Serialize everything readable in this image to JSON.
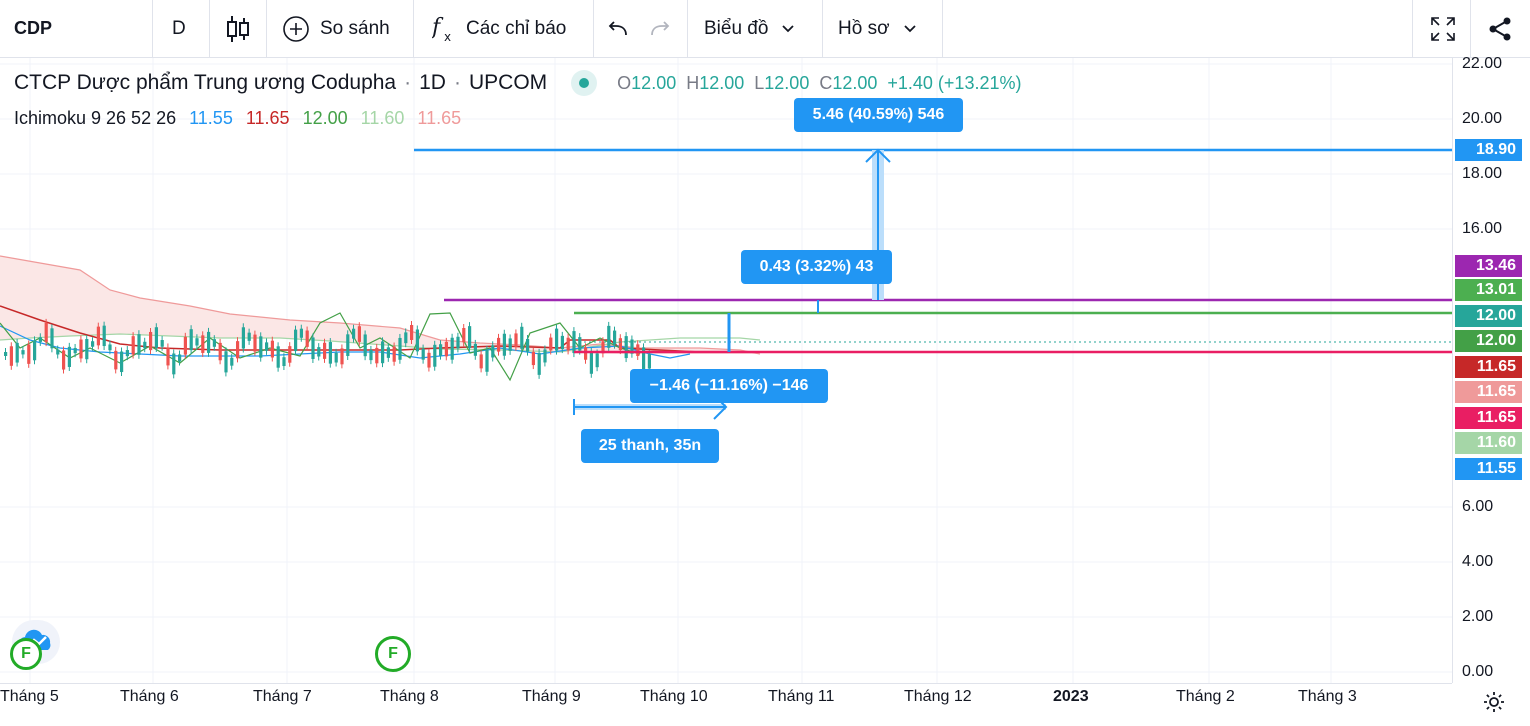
{
  "toolbar": {
    "symbol": "CDP",
    "interval": "D",
    "compare_label": "So sánh",
    "indicators_label": "Các chỉ báo",
    "chart_type_label": "Biểu đồ",
    "profile_label": "Hồ sơ"
  },
  "legend": {
    "title": "CTCP Dược phẩm Trung ương Codupha",
    "dot1": "·",
    "interval": "1D",
    "dot2": "·",
    "exchange": "UPCOM",
    "o_label": "O",
    "o_val": "12.00",
    "h_label": "H",
    "h_val": "12.00",
    "l_label": "L",
    "l_val": "12.00",
    "c_label": "C",
    "c_val": "12.00",
    "change": "+1.40 (+13.21%)",
    "ichimoku_label": "Ichimoku 9 26 52 26",
    "ichi_values": [
      "11.55",
      "11.65",
      "12.00",
      "11.60",
      "11.65"
    ]
  },
  "tooltips": {
    "top": "5.46 (40.59%) 546",
    "mid": "0.43 (3.32%) 43",
    "neg": "−1.46 (−11.16%) −146",
    "bars": "25 thanh, 35n"
  },
  "price_ticks": [
    "22.00",
    "20.00",
    "18.00",
    "16.00",
    "6.00",
    "4.00",
    "2.00",
    "0.00"
  ],
  "price_labels": [
    {
      "text": "18.90",
      "color": "#2196f3"
    },
    {
      "text": "13.46",
      "color": "#9c27b0"
    },
    {
      "text": "13.01",
      "color": "#4caf50"
    },
    {
      "text": "12.00",
      "color": "#26a69a"
    },
    {
      "text": "12.00",
      "color": "#43a047"
    },
    {
      "text": "11.65",
      "color": "#c62828"
    },
    {
      "text": "11.65",
      "color": "#ef9a9a"
    },
    {
      "text": "11.65",
      "color": "#e91e63"
    },
    {
      "text": "11.60",
      "color": "#a5d6a7"
    },
    {
      "text": "11.55",
      "color": "#2196f3"
    }
  ],
  "time_ticks": [
    "Tháng 5",
    "Tháng 6",
    "Tháng 7",
    "Tháng 8",
    "Tháng 9",
    "Tháng 10",
    "Tháng 11",
    "Tháng 12",
    "2023",
    "Tháng 2",
    "Tháng 3"
  ],
  "badges": [
    "F",
    "F"
  ],
  "colors": {
    "up": "#26a69a",
    "down": "#ef5350",
    "accent": "#2196f3"
  }
}
